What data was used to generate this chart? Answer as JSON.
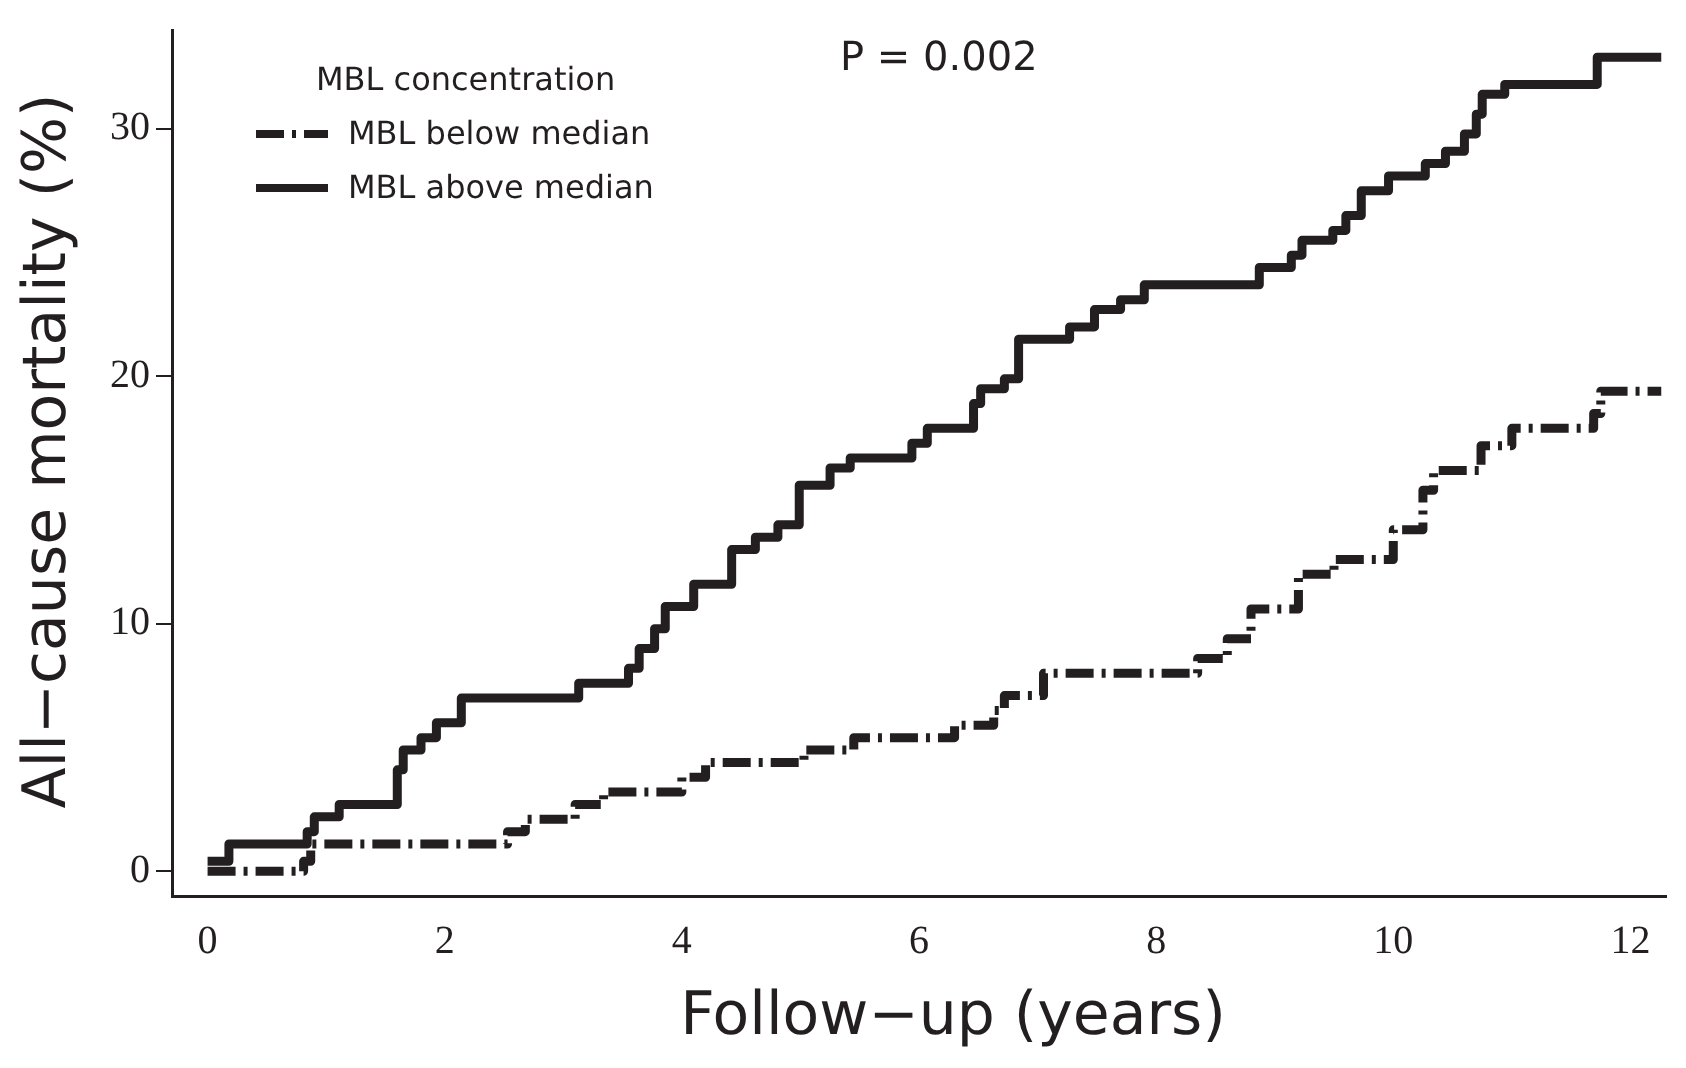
{
  "chart_data": {
    "type": "step",
    "xlabel": "Follow−up (years)",
    "ylabel": "All−cause mortality (%)",
    "legend_title": "MBL concentration",
    "legend": "top left",
    "grid": false,
    "marker": "none",
    "annotations": [
      "P = 0.002"
    ],
    "xlim": [
      -0.3,
      12.3
    ],
    "xticks": [
      0,
      2,
      4,
      6,
      8,
      10,
      12
    ],
    "ylim": [
      -1,
      34
    ],
    "yticks": [
      0,
      10,
      20,
      30
    ],
    "series": [
      {
        "name": "MBL below median",
        "color": "#231f20",
        "line_style": "dashed",
        "x": [
          0,
          0.81,
          0.87,
          2.53,
          2.68,
          3.1,
          3.34,
          4.0,
          4.2,
          5.03,
          5.45,
          6.3,
          6.63,
          6.72,
          7.05,
          8.35,
          8.6,
          8.8,
          9.2,
          9.5,
          10.0,
          10.25,
          10.34,
          10.74,
          11.0,
          11.69,
          11.75,
          12.26
        ],
        "values": [
          0,
          0.4,
          1.1,
          1.6,
          2.1,
          2.7,
          3.2,
          3.8,
          4.4,
          4.9,
          5.4,
          5.9,
          6.5,
          7.1,
          8.0,
          8.6,
          9.4,
          10.6,
          12.0,
          12.6,
          13.8,
          15.4,
          16.2,
          17.2,
          17.9,
          18.5,
          19.4,
          19.4
        ]
      },
      {
        "name": "MBL above median",
        "color": "#231f20",
        "line_style": "solid",
        "x": [
          0,
          0.18,
          0.84,
          0.9,
          1.11,
          1.6,
          1.65,
          1.8,
          1.93,
          2.14,
          3.13,
          3.55,
          3.64,
          3.77,
          3.86,
          4.1,
          4.42,
          4.62,
          4.81,
          4.99,
          5.25,
          5.42,
          5.94,
          6.07,
          6.46,
          6.52,
          6.72,
          6.84,
          7.27,
          7.48,
          7.7,
          7.9,
          8.87,
          9.14,
          9.23,
          9.49,
          9.6,
          9.73,
          9.96,
          10.27,
          10.44,
          10.6,
          10.7,
          10.75,
          10.94,
          11.72,
          12.26
        ],
        "values": [
          0.4,
          1.1,
          1.6,
          2.2,
          2.7,
          4.1,
          4.9,
          5.4,
          6.0,
          7.0,
          7.6,
          8.2,
          9.0,
          9.8,
          10.7,
          11.6,
          13.0,
          13.5,
          14.0,
          15.6,
          16.3,
          16.7,
          17.3,
          17.9,
          18.9,
          19.5,
          19.9,
          21.5,
          22.0,
          22.7,
          23.1,
          23.7,
          24.4,
          24.9,
          25.5,
          25.9,
          26.5,
          27.5,
          28.1,
          28.6,
          29.1,
          29.8,
          30.6,
          31.4,
          31.8,
          32.9,
          32.9
        ]
      }
    ]
  }
}
